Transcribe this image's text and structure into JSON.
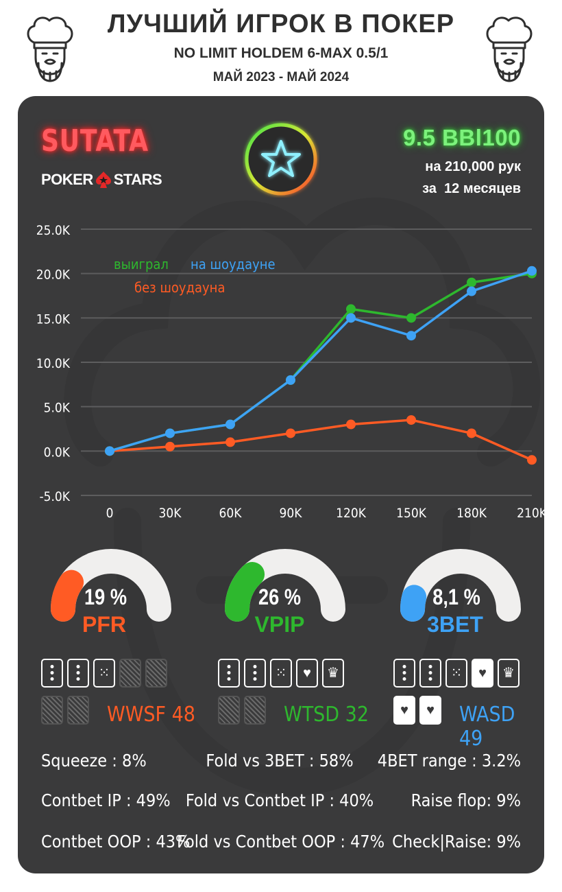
{
  "header": {
    "title": "ЛУЧШИЙ ИГРОК В ПОКЕР",
    "subtitle": "NO LIMIT HOLDEM 6-MAX 0.5/1",
    "period": "МАЙ 2023 - МАЙ 2024"
  },
  "player": {
    "name": "SUTATA",
    "room_left": "POKER",
    "room_right": "STARS",
    "winrate": "9.5 BBl100",
    "hands": "на 210,000 рук",
    "months": "за  12 месяцев"
  },
  "colors": {
    "green": "#2eb82e",
    "blue": "#3ea2f5",
    "orange": "#ff5b24",
    "panel": "#3a3a3b"
  },
  "chart_data": {
    "type": "line",
    "x": [
      "0",
      "30K",
      "60K",
      "90K",
      "120K",
      "150K",
      "180K",
      "210K"
    ],
    "y_ticks": [
      "25.0K",
      "20.0K",
      "15.0K",
      "10.0K",
      "5.0K",
      "0.0K",
      "-5.0K"
    ],
    "ylim": [
      -5000,
      25000
    ],
    "grid": true,
    "legend_position": "top-left",
    "series": [
      {
        "name": "выиграл",
        "color": "#2eb82e",
        "values": [
          0,
          2000,
          3000,
          8000,
          16000,
          15000,
          19000,
          20000
        ]
      },
      {
        "name": "на шоудауне",
        "color": "#3ea2f5",
        "values": [
          0,
          2000,
          3000,
          8000,
          15000,
          13000,
          18000,
          20300
        ]
      },
      {
        "name": "без шоудауна",
        "color": "#ff5b24",
        "values": [
          0,
          500,
          1000,
          2000,
          3000,
          3500,
          2000,
          -1000
        ]
      }
    ]
  },
  "gauges": [
    {
      "value": "19 %",
      "label": "PFR",
      "fraction": 0.19,
      "color": "#ff5b24"
    },
    {
      "value": "26 %",
      "label": "VPIP",
      "fraction": 0.26,
      "color": "#2eb82e"
    },
    {
      "value": "8,1 %",
      "label": "3BET",
      "fraction": 0.081,
      "color": "#3ea2f5"
    }
  ],
  "card_stats": [
    {
      "label": "WWSF 48",
      "color": "#ff5b24"
    },
    {
      "label": "WTSD 32",
      "color": "#2eb82e"
    },
    {
      "label": "WASD 49",
      "color": "#3ea2f5"
    }
  ],
  "metrics": {
    "left": [
      "Squeeze : 8%",
      "Contbet IP : 49%",
      "Contbet OOP : 43%"
    ],
    "center": [
      "Fold vs 3BET : 58%",
      "Fold vs Contbet IP : 40%",
      "Fold vs Contbet OOP : 47%"
    ],
    "right": [
      "4BET range : 3.2%",
      "Raise flop: 9%",
      "Check|Raise: 9%"
    ]
  }
}
